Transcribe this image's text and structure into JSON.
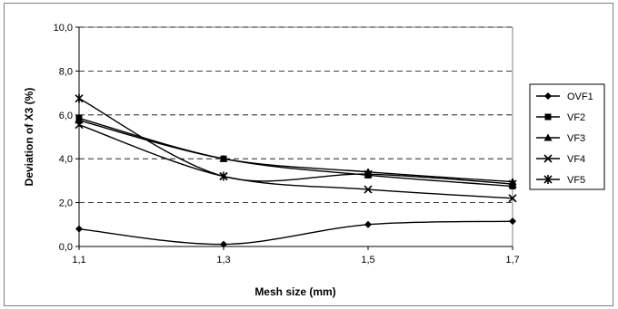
{
  "chart_data": {
    "type": "line",
    "xlabel": "Mesh size (mm)",
    "ylabel": "Deviation of X3 (%)",
    "x": [
      1.1,
      1.3,
      1.5,
      1.7
    ],
    "x_tick_labels": [
      "1,1",
      "1,3",
      "1,5",
      "1,7"
    ],
    "ylim": [
      0,
      10
    ],
    "y_ticks": [
      0,
      2,
      4,
      6,
      8,
      10
    ],
    "y_tick_labels": [
      "0,0",
      "2,0",
      "4,0",
      "6,0",
      "8,0",
      "10,0"
    ],
    "grid": "horizontal dashed",
    "legend_position": "right",
    "series": [
      {
        "name": "OVF1",
        "marker": "diamond",
        "values": [
          0.8,
          0.1,
          1.0,
          1.15
        ]
      },
      {
        "name": "VF2",
        "marker": "square",
        "values": [
          5.85,
          4.0,
          3.25,
          2.75
        ]
      },
      {
        "name": "VF3",
        "marker": "triangle",
        "values": [
          5.75,
          4.0,
          3.4,
          2.95
        ]
      },
      {
        "name": "VF4",
        "marker": "x",
        "values": [
          5.55,
          3.2,
          2.6,
          2.2
        ]
      },
      {
        "name": "VF5",
        "marker": "star",
        "values": [
          6.75,
          3.2,
          3.3,
          2.85
        ]
      }
    ]
  }
}
